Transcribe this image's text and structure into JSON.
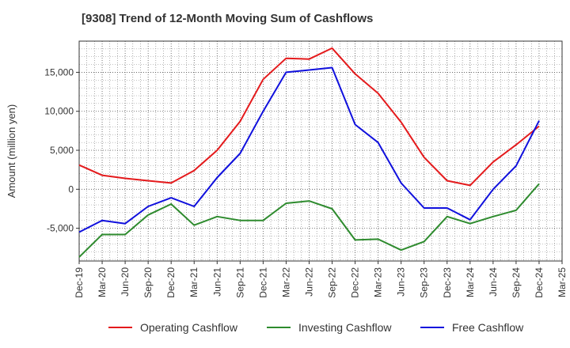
{
  "chart_data": {
    "type": "line",
    "title": "[9308]  Trend of 12-Month Moving Sum of Cashflows",
    "xlabel": "",
    "ylabel": "Amount (million yen)",
    "ylim": [
      -9200,
      19000
    ],
    "yticks": [
      -5000,
      0,
      5000,
      10000,
      15000
    ],
    "ytick_labels": [
      "-5,000",
      "0",
      "5,000",
      "10,000",
      "15,000"
    ],
    "categories": [
      "Dec-19",
      "Mar-20",
      "Jun-20",
      "Sep-20",
      "Dec-20",
      "Mar-21",
      "Jun-21",
      "Sep-21",
      "Dec-21",
      "Mar-22",
      "Jun-22",
      "Sep-22",
      "Dec-22",
      "Mar-23",
      "Jun-23",
      "Sep-23",
      "Dec-23",
      "Mar-24",
      "Jun-24",
      "Sep-24",
      "Dec-24",
      "Mar-25"
    ],
    "grid": true,
    "legend_position": "bottom",
    "series": [
      {
        "name": "Operating Cashflow",
        "color": "#e41a1c",
        "values": [
          3100,
          1800,
          1400,
          1100,
          800,
          2400,
          5000,
          8700,
          14100,
          16800,
          16700,
          18100,
          14800,
          12300,
          8600,
          4100,
          1100,
          500,
          3500,
          5700,
          8100,
          null
        ]
      },
      {
        "name": "Investing Cashflow",
        "color": "#2e8b2e",
        "values": [
          -8700,
          -5800,
          -5800,
          -3300,
          -1900,
          -4600,
          -3500,
          -4000,
          -4000,
          -1800,
          -1500,
          -2500,
          -6500,
          -6400,
          -7800,
          -6700,
          -3500,
          -4400,
          -3500,
          -2700,
          700,
          null
        ]
      },
      {
        "name": "Free Cashflow",
        "color": "#1010dd",
        "values": [
          -5500,
          -4000,
          -4400,
          -2200,
          -1100,
          -2200,
          1500,
          4600,
          10000,
          15000,
          15300,
          15600,
          8300,
          6000,
          800,
          -2400,
          -2400,
          -3900,
          0,
          3000,
          8800,
          null
        ]
      }
    ]
  }
}
